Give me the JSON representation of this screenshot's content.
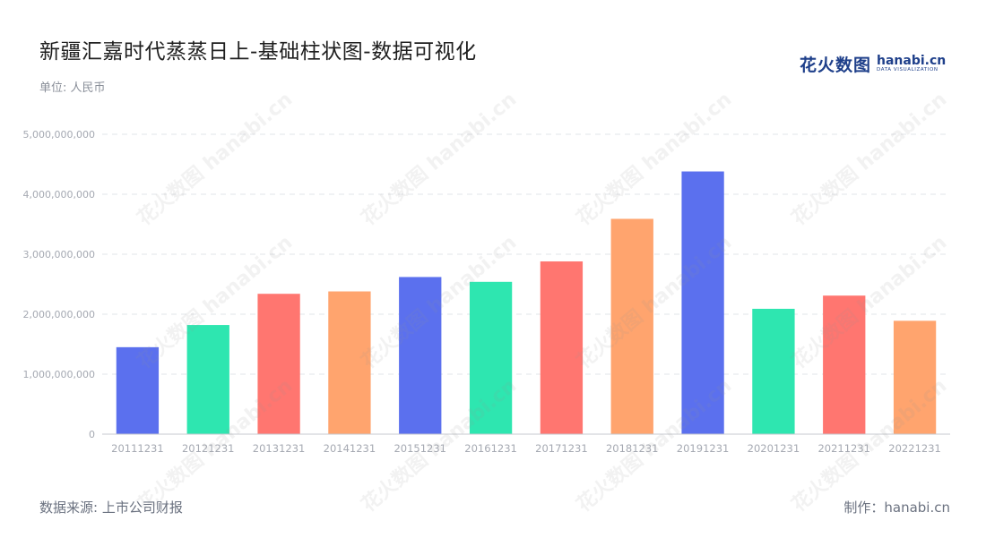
{
  "header": {
    "title": "新疆汇嘉时代蒸蒸日上-基础柱状图-数据可视化",
    "unit": "单位: 人民币"
  },
  "logo": {
    "cn": "花火数图",
    "en": "hanabi.cn",
    "en_sub": "DATA VISUALIZATION"
  },
  "footer": {
    "source": "数据来源: 上市公司财报",
    "credit": "制作：hanabi.cn"
  },
  "watermark_text": "花火数图 hanabi.cn",
  "colors": {
    "palette": [
      "#5B70EE",
      "#2EE6B0",
      "#FF7670",
      "#FFA46E"
    ],
    "grid": "#e2e4e8",
    "axis": "#c7c9cf",
    "tick_text": "#a5a9b2"
  },
  "chart_data": {
    "type": "bar",
    "categories": [
      "20111231",
      "20121231",
      "20131231",
      "20141231",
      "20151231",
      "20161231",
      "20171231",
      "20181231",
      "20191231",
      "20201231",
      "20211231",
      "20221231"
    ],
    "values": [
      1450000000,
      1820000000,
      2340000000,
      2380000000,
      2620000000,
      2540000000,
      2880000000,
      3590000000,
      4380000000,
      2090000000,
      2310000000,
      1890000000
    ],
    "ylim": [
      0,
      5000000000
    ],
    "yticks": [
      0,
      1000000000,
      2000000000,
      3000000000,
      4000000000,
      5000000000
    ],
    "ytick_labels": [
      "0",
      "1,000,000,000",
      "2,000,000,000",
      "3,000,000,000",
      "4,000,000,000",
      "5,000,000,000"
    ],
    "grid": true,
    "title": "新疆汇嘉时代蒸蒸日上-基础柱状图-数据可视化",
    "xlabel": "",
    "ylabel": ""
  }
}
